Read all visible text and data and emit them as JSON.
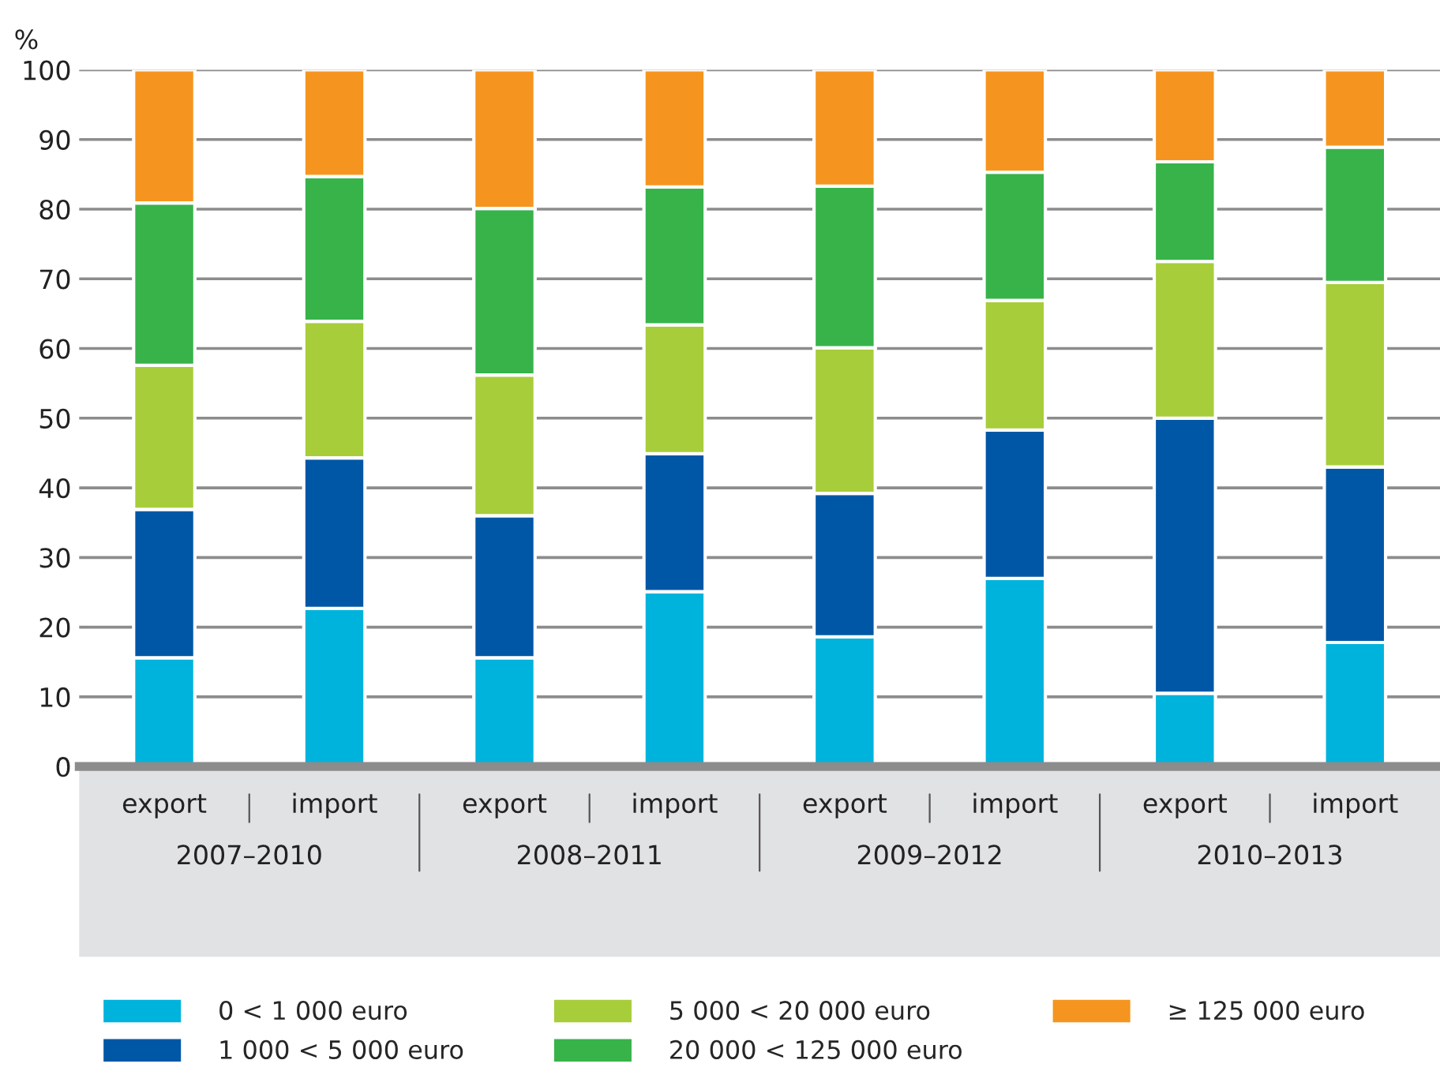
{
  "chart_data": {
    "type": "bar",
    "stacked": true,
    "ylabel": "%",
    "categories": [
      "export",
      "import",
      "export",
      "import",
      "export",
      "import",
      "export",
      "import"
    ],
    "annotations": [
      "2007–2010",
      "2008–2011",
      "2009–2012",
      "2010–2013"
    ],
    "series": [
      {
        "name": "0 < 1 000 euro",
        "color": "#00b3dc",
        "values": [
          15.6,
          22.7,
          15.6,
          25.1,
          18.6,
          27.0,
          10.5,
          17.8
        ]
      },
      {
        "name": "1 000 < 5 000 euro",
        "color": "#0057a6",
        "values": [
          21.3,
          21.6,
          20.4,
          19.8,
          20.6,
          21.3,
          39.5,
          25.2
        ]
      },
      {
        "name": "5 000 < 20 000 euro",
        "color": "#a7cd3a",
        "values": [
          20.7,
          19.6,
          20.2,
          18.5,
          20.9,
          18.6,
          22.5,
          26.5
        ]
      },
      {
        "name": "20 000 < 125 000 euro",
        "color": "#37b34a",
        "values": [
          23.3,
          20.8,
          23.9,
          19.8,
          23.2,
          18.4,
          14.3,
          19.4
        ]
      },
      {
        "name": "≥ 125 000 euro",
        "color": "#f5951f",
        "values": [
          19.1,
          15.3,
          19.9,
          16.8,
          16.7,
          14.7,
          13.2,
          11.1
        ]
      }
    ],
    "ylim": [
      0,
      100
    ],
    "yticks": [
      0,
      10,
      20,
      30,
      40,
      50,
      60,
      70,
      80,
      90,
      100
    ],
    "grid": "y",
    "legend": "bottom"
  }
}
